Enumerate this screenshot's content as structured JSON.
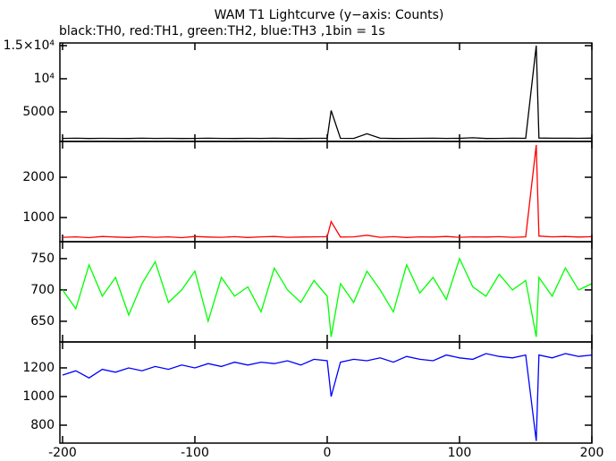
{
  "chart_data": [
    {
      "type": "line",
      "title": "WAM T1 Lightcurve (y−axis: Counts)",
      "subtitle": "black:TH0, red:TH1, green:TH2, blue:TH3 ,1bin = 1s",
      "color": "#000000",
      "x": [
        -200,
        -190,
        -180,
        -170,
        -160,
        -150,
        -140,
        -130,
        -120,
        -110,
        -100,
        -90,
        -80,
        -70,
        -60,
        -50,
        -40,
        -30,
        -20,
        -10,
        0,
        3,
        10,
        20,
        30,
        40,
        50,
        60,
        70,
        80,
        90,
        100,
        110,
        120,
        130,
        140,
        150,
        158,
        160,
        170,
        180,
        190,
        200
      ],
      "values": [
        1000,
        1020,
        990,
        1010,
        1000,
        980,
        1030,
        1000,
        1010,
        990,
        1000,
        1020,
        1000,
        990,
        1010,
        1000,
        1030,
        1000,
        990,
        1010,
        1020,
        5200,
        1010,
        1000,
        1700,
        1020,
        990,
        1000,
        1010,
        1030,
        1000,
        1010,
        1100,
        990,
        1000,
        1020,
        1010,
        15000,
        1050,
        1020,
        1030,
        1010,
        1040
      ],
      "ylim": [
        540,
        15400
      ],
      "yticks": [
        5000,
        {
          "value": 10000,
          "label": "10⁴"
        },
        {
          "value": 15000,
          "label": "1.5×10⁴"
        }
      ]
    },
    {
      "type": "line",
      "color": "#ff0000",
      "x": [
        -200,
        -190,
        -180,
        -170,
        -160,
        -150,
        -140,
        -130,
        -120,
        -110,
        -100,
        -90,
        -80,
        -70,
        -60,
        -50,
        -40,
        -30,
        -20,
        -10,
        0,
        3,
        10,
        20,
        30,
        40,
        50,
        60,
        70,
        80,
        90,
        100,
        110,
        120,
        130,
        140,
        150,
        158,
        160,
        170,
        180,
        190,
        200
      ],
      "values": [
        510,
        520,
        500,
        530,
        515,
        505,
        525,
        510,
        520,
        500,
        530,
        515,
        510,
        525,
        505,
        520,
        530,
        510,
        515,
        520,
        525,
        900,
        515,
        520,
        560,
        510,
        525,
        505,
        520,
        515,
        530,
        510,
        520,
        515,
        525,
        510,
        520,
        2800,
        540,
        520,
        530,
        515,
        525
      ],
      "ylim": [
        400,
        2890
      ],
      "yticks": [
        1000,
        2000
      ]
    },
    {
      "type": "line",
      "color": "#00ff00",
      "x": [
        -200,
        -190,
        -180,
        -170,
        -160,
        -150,
        -140,
        -130,
        -120,
        -110,
        -100,
        -90,
        -80,
        -70,
        -60,
        -50,
        -40,
        -30,
        -20,
        -10,
        0,
        3,
        10,
        20,
        30,
        40,
        50,
        60,
        70,
        80,
        90,
        100,
        110,
        120,
        130,
        140,
        150,
        158,
        160,
        170,
        180,
        190,
        200
      ],
      "values": [
        700,
        670,
        740,
        690,
        720,
        660,
        710,
        745,
        680,
        700,
        730,
        650,
        720,
        690,
        705,
        665,
        735,
        700,
        680,
        715,
        690,
        625,
        710,
        680,
        730,
        700,
        665,
        740,
        695,
        720,
        685,
        750,
        705,
        690,
        725,
        700,
        715,
        625,
        720,
        690,
        735,
        700,
        710
      ],
      "ylim": [
        617,
        777
      ],
      "yticks": [
        650,
        700,
        750
      ]
    },
    {
      "type": "line",
      "color": "#0000ff",
      "x": [
        -200,
        -190,
        -180,
        -170,
        -160,
        -150,
        -140,
        -130,
        -120,
        -110,
        -100,
        -90,
        -80,
        -70,
        -60,
        -50,
        -40,
        -30,
        -20,
        -10,
        0,
        3,
        10,
        20,
        30,
        40,
        50,
        60,
        70,
        80,
        90,
        100,
        110,
        120,
        130,
        140,
        150,
        158,
        160,
        170,
        180,
        190,
        200
      ],
      "values": [
        1150,
        1180,
        1130,
        1190,
        1170,
        1200,
        1180,
        1210,
        1190,
        1220,
        1200,
        1230,
        1210,
        1240,
        1220,
        1240,
        1230,
        1250,
        1220,
        1260,
        1250,
        1000,
        1240,
        1260,
        1250,
        1270,
        1240,
        1280,
        1260,
        1250,
        1290,
        1270,
        1260,
        1300,
        1280,
        1270,
        1290,
        690,
        1290,
        1270,
        1300,
        1280,
        1290
      ],
      "ylim": [
        675,
        1381
      ],
      "yticks": [
        800,
        1000,
        1200
      ],
      "xlim": [
        -202,
        200
      ],
      "xticks": [
        -200,
        -100,
        0,
        100,
        200
      ]
    }
  ]
}
